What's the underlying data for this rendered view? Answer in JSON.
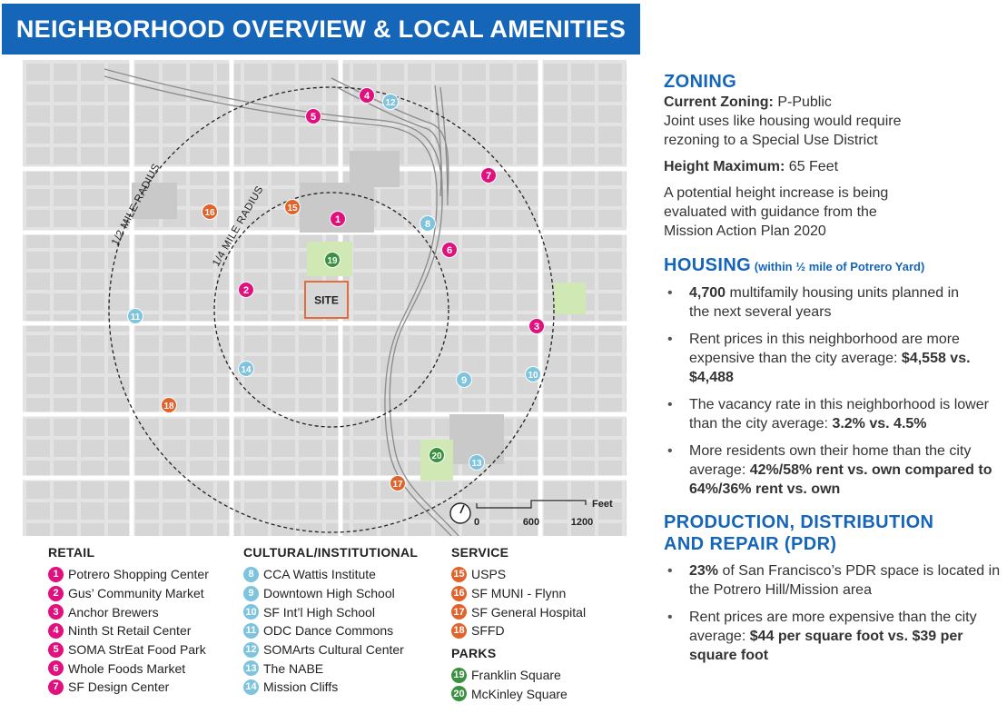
{
  "title": "NEIGHBORHOOD OVERVIEW & LOCAL AMENITIES",
  "colors": {
    "brand_blue": "#1565b8",
    "retail": "#e0117f",
    "cultural": "#7ec4dd",
    "service": "#e0632b",
    "parks": "#3a9140",
    "site_outline": "#e0632b",
    "park_fill": "#cfe8b4"
  },
  "map": {
    "half_mile_label": "1/2 MILE RADIUS",
    "quarter_mile_label": "1/4 MILE RADIUS",
    "site_label": "SITE",
    "scale_unit": "Feet",
    "scale_ticks": [
      "0",
      "600",
      "1200"
    ],
    "north_arrow_icon": "north-arrow-icon"
  },
  "legend": {
    "retail": {
      "heading": "RETAIL",
      "items": [
        {
          "num": "1",
          "label": "Potrero Shopping Center"
        },
        {
          "num": "2",
          "label": "Gus’ Community Market"
        },
        {
          "num": "3",
          "label": "Anchor Brewers"
        },
        {
          "num": "4",
          "label": "Ninth St Retail Center"
        },
        {
          "num": "5",
          "label": "SOMA StrEat Food Park"
        },
        {
          "num": "6",
          "label": "Whole Foods Market"
        },
        {
          "num": "7",
          "label": "SF Design Center"
        }
      ]
    },
    "cultural": {
      "heading": "CULTURAL/INSTITUTIONAL",
      "items": [
        {
          "num": "8",
          "label": "CCA Wattis Institute"
        },
        {
          "num": "9",
          "label": "Downtown High School"
        },
        {
          "num": "10",
          "label": "SF Int’l High School"
        },
        {
          "num": "11",
          "label": "ODC Dance Commons"
        },
        {
          "num": "12",
          "label": "SOMArts Cultural Center"
        },
        {
          "num": "13",
          "label": "The NABE"
        },
        {
          "num": "14",
          "label": "Mission Cliffs"
        }
      ]
    },
    "service": {
      "heading": "SERVICE",
      "items": [
        {
          "num": "15",
          "label": "USPS"
        },
        {
          "num": "16",
          "label": "SF MUNI - Flynn"
        },
        {
          "num": "17",
          "label": "SF General Hospital"
        },
        {
          "num": "18",
          "label": "SFFD"
        }
      ]
    },
    "parks": {
      "heading": "PARKS",
      "items": [
        {
          "num": "19",
          "label": "Franklin Square"
        },
        {
          "num": "20",
          "label": "McKinley Square"
        }
      ]
    }
  },
  "zoning": {
    "heading": "ZONING",
    "current_label": "Current Zoning:",
    "current_value": " P-Public",
    "current_note": "Joint uses like housing would require rezoning to a Special Use District",
    "height_label": "Height Maximum:",
    "height_value": " 65 Feet",
    "height_note": "A potential height increase is being evaluated with guidance from the Mission Action Plan 2020"
  },
  "housing": {
    "heading": "HOUSING",
    "subheading": " (within ½ mile of Potrero Yard)",
    "b1_bold": "4,700",
    "b1_text": " multifamily housing units planned in the next several years",
    "b2_text": "Rent prices in this neighborhood are more expensive than the city average: ",
    "b2_bold": "$4,558 vs. $4,488",
    "b3_text": "The vacancy rate in this neighborhood is lower than the city average: ",
    "b3_bold": "3.2% vs. 4.5%",
    "b4_text": "More residents own their home than the city average: ",
    "b4_bold": "42%/58% rent vs. own compared to 64%/36% rent vs. own"
  },
  "pdr": {
    "heading_line1": "PRODUCTION, DISTRIBUTION",
    "heading_line2": "AND REPAIR (PDR)",
    "b1_bold": "23%",
    "b1_text": " of San Francisco’s PDR space is located in the Potrero Hill/Mission area",
    "b2_text": "Rent prices are more expensive than the city average: ",
    "b2_bold": "$44 per square foot vs. $39 per square foot"
  }
}
